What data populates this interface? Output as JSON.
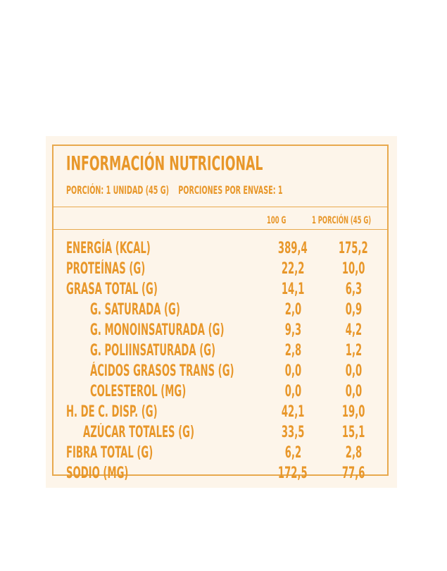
{
  "header": {
    "title": "INFORMACIÓN NUTRICIONAL",
    "portion": "PORCIÓN: 1 UNIDAD (45 G)",
    "portions_per_pack": "PORCIONES POR ENVASE: 1"
  },
  "columns": {
    "per_100g": "100 G",
    "per_portion": "1 PORCIÓN (45 G)"
  },
  "rows": [
    {
      "label": "ENERGÍA (KCAL)",
      "per_100g": "389,4",
      "per_portion": "175,2"
    },
    {
      "label": "PROTEÍNAS (G)",
      "per_100g": "22,2",
      "per_portion": "10,0"
    },
    {
      "label": "GRASA TOTAL (G)",
      "per_100g": "14,1",
      "per_portion": "6,3"
    },
    {
      "label": "G. SATURADA (G)",
      "per_100g": "2,0",
      "per_portion": "0,9"
    },
    {
      "label": "G. MONOINSATURADA (G)",
      "per_100g": "9,3",
      "per_portion": "4,2"
    },
    {
      "label": "G. POLIINSATURADA (G)",
      "per_100g": "2,8",
      "per_portion": "1,2"
    },
    {
      "label": "ÁCIDOS GRASOS TRANS (G)",
      "per_100g": "0,0",
      "per_portion": "0,0"
    },
    {
      "label": "COLESTEROL (MG)",
      "per_100g": "0,0",
      "per_portion": "0,0"
    },
    {
      "label": "H. DE C. DISP. (G)",
      "per_100g": "42,1",
      "per_portion": "19,0"
    },
    {
      "label": "AZÚCAR TOTALES (G)",
      "per_100g": "33,5",
      "per_portion": "15,1"
    },
    {
      "label": "FIBRA TOTAL (G)",
      "per_100g": "6,2",
      "per_portion": "2,8"
    },
    {
      "label": "SODIO (MG)",
      "per_100g": "172,5",
      "per_portion": "77,6"
    }
  ],
  "colors": {
    "text": "#e8972a",
    "border": "#e8a94e",
    "panel_background": "#fdf5ea"
  }
}
